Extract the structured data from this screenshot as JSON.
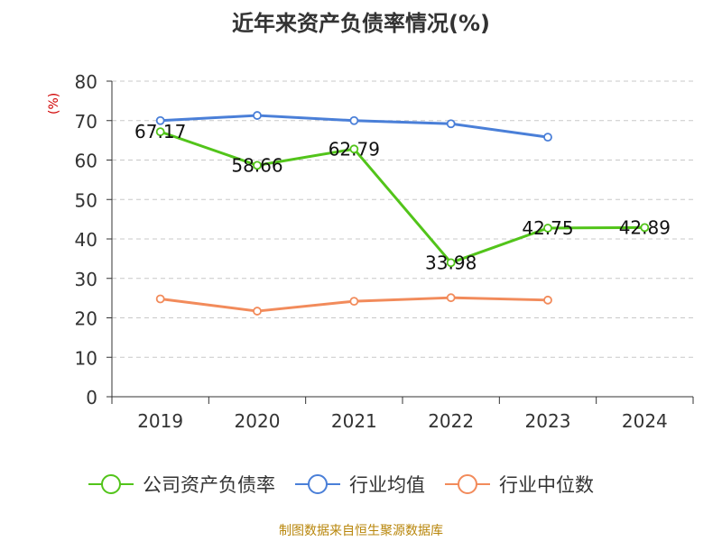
{
  "chart_data": {
    "type": "line",
    "title": "近年来资产负债率情况(%)",
    "ylabel": "(%)",
    "xlabel": "",
    "categories": [
      "2019",
      "2020",
      "2021",
      "2022",
      "2023",
      "2024"
    ],
    "ylim": [
      0,
      80
    ],
    "yticks": [
      0,
      10,
      20,
      30,
      40,
      50,
      60,
      70,
      80
    ],
    "grid": true,
    "legend_position": "bottom",
    "series": [
      {
        "name": "公司资产负债率",
        "color": "#52c41a",
        "values": [
          67.17,
          58.66,
          62.79,
          33.98,
          42.75,
          42.89
        ],
        "labels": [
          "67.17",
          "58.66",
          "62.79",
          "33.98",
          "42.75",
          "42.89"
        ]
      },
      {
        "name": "行业均值",
        "color": "#4a7fd8",
        "values": [
          70.0,
          71.3,
          70.0,
          69.2,
          65.8,
          null
        ]
      },
      {
        "name": "行业中位数",
        "color": "#f28b5b",
        "values": [
          24.8,
          21.7,
          24.2,
          25.1,
          24.5,
          null
        ]
      }
    ]
  },
  "footer": {
    "source": "制图数据来自恒生聚源数据库"
  }
}
